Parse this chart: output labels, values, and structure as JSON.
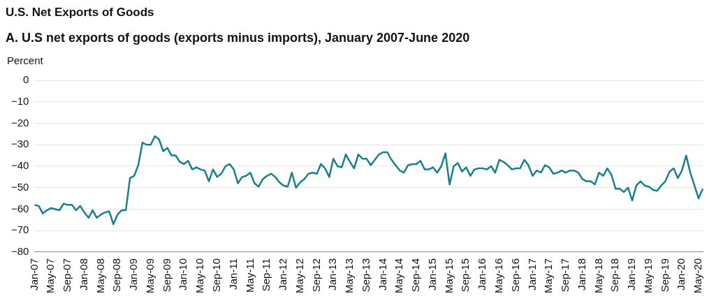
{
  "chart_data": {
    "type": "line",
    "title": "U.S. Net Exports of Goods",
    "subtitle": "A. U.S net exports of goods (exports minus imports), January 2007-June 2020",
    "ylabel": "Percent",
    "categories": [
      "Jan-07",
      null,
      null,
      null,
      "May-07",
      null,
      null,
      null,
      "Sep-07",
      null,
      null,
      null,
      "Jan-08",
      null,
      null,
      null,
      "May-08",
      null,
      null,
      null,
      "Sep-08",
      null,
      null,
      null,
      "Jan-09",
      null,
      null,
      null,
      "May-09",
      null,
      null,
      null,
      "Sep-09",
      null,
      null,
      null,
      "Jan-10",
      null,
      null,
      null,
      "May-10",
      null,
      null,
      null,
      "Sep-10",
      null,
      null,
      null,
      "Jan-11",
      null,
      null,
      null,
      "May-11",
      null,
      null,
      null,
      "Sep-11",
      null,
      null,
      null,
      "Jan-12",
      null,
      null,
      null,
      "May-12",
      null,
      null,
      null,
      "Sep-12",
      null,
      null,
      null,
      "Jan-13",
      null,
      null,
      null,
      "May-13",
      null,
      null,
      null,
      "Sep-13",
      null,
      null,
      null,
      "Jan-14",
      null,
      null,
      null,
      "May-14",
      null,
      null,
      null,
      "Sep-14",
      null,
      null,
      null,
      "Jan-15",
      null,
      null,
      null,
      "May-15",
      null,
      null,
      null,
      "Sep-15",
      null,
      null,
      null,
      "Jan-16",
      null,
      null,
      null,
      "May-16",
      null,
      null,
      null,
      "Sep-16",
      null,
      null,
      null,
      "Jan-17",
      null,
      null,
      null,
      "May-17",
      null,
      null,
      null,
      "Sep-17",
      null,
      null,
      null,
      "Jan-18",
      null,
      null,
      null,
      "May-18",
      null,
      null,
      null,
      "Sep-18",
      null,
      null,
      null,
      "Jan-19",
      null,
      null,
      null,
      "May-19",
      null,
      null,
      null,
      "Sep-19",
      null,
      null,
      null,
      "Jan-20",
      null,
      null,
      null,
      "May-20",
      null
    ],
    "series": [
      {
        "color": "#17808a",
        "values": [
          -58,
          -58.5,
          -62,
          -60.5,
          -59.5,
          -60,
          -60.5,
          -57.5,
          -58,
          -58,
          -60.5,
          -58.5,
          -61.5,
          -64,
          -60.5,
          -64,
          -62.5,
          -61.5,
          -61,
          -67,
          -62.5,
          -60.5,
          -60.5,
          -45.5,
          -44.5,
          -39.5,
          -29,
          -30,
          -30,
          -26,
          -27.5,
          -33,
          -31.5,
          -35,
          -35,
          -38,
          -39,
          -37.5,
          -41.5,
          -40.5,
          -41.5,
          -42,
          -47,
          -41.5,
          -45,
          -43.5,
          -40,
          -39,
          -41.5,
          -48,
          -45,
          -44.5,
          -43,
          -48,
          -49.5,
          -46,
          -44.5,
          -43.5,
          -45,
          -47.5,
          -49,
          -49.5,
          -43,
          -50,
          -47.5,
          -46,
          -43.5,
          -43,
          -43.5,
          -39,
          -41,
          -45,
          -36.5,
          -40,
          -40.5,
          -34.5,
          -38,
          -41,
          -34.5,
          -36.5,
          -36.5,
          -39.5,
          -37,
          -34.5,
          -33.5,
          -33.5,
          -37,
          -39.5,
          -42,
          -43,
          -39.5,
          -39,
          -39,
          -37.5,
          -41.5,
          -41.5,
          -40.5,
          -43,
          -40,
          -34,
          -48.5,
          -40,
          -38.5,
          -42.5,
          -40.5,
          -44.5,
          -41.5,
          -41,
          -41,
          -41.5,
          -40,
          -43,
          -37,
          -38,
          -39.5,
          -41.5,
          -41,
          -41,
          -37,
          -39.5,
          -44.5,
          -42,
          -43,
          -39.5,
          -40.5,
          -43.5,
          -43,
          -42,
          -43,
          -42,
          -42,
          -43,
          -46,
          -47,
          -47,
          -48.5,
          -43,
          -44.5,
          -41,
          -44,
          -50.5,
          -50.5,
          -52,
          -50,
          -56,
          -49,
          -47,
          -49,
          -49.5,
          -51,
          -51.5,
          -49,
          -47,
          -42.5,
          -41,
          -45.5,
          -42,
          -35,
          -43,
          -49,
          -55,
          -50.5
        ]
      }
    ],
    "ylim": [
      -80,
      0
    ],
    "yticks": [
      0,
      -10,
      -20,
      -30,
      -40,
      -50,
      -60,
      -70,
      -80
    ],
    "grid": "y",
    "marker": "none",
    "line_style": "solid",
    "legend": false
  }
}
